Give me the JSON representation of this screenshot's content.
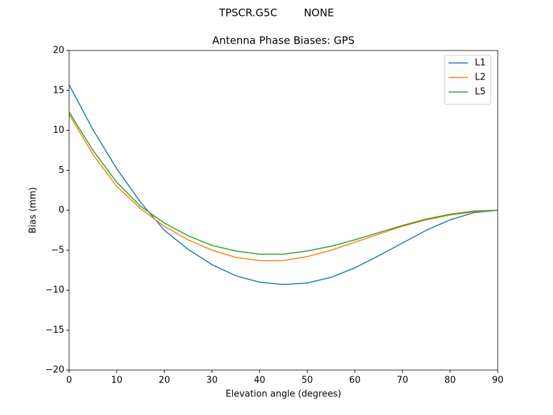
{
  "chart_data": {
    "type": "line",
    "suptitle": "TPSCR.G5C        NONE",
    "title": "Antenna Phase Biases: GPS",
    "xlabel": "Elevation angle (degrees)",
    "ylabel": "Bias (mm)",
    "x": [
      0,
      5,
      10,
      15,
      20,
      25,
      30,
      35,
      40,
      45,
      50,
      55,
      60,
      65,
      70,
      75,
      80,
      85,
      90
    ],
    "series": [
      {
        "name": "L1",
        "color": "#1f77b4",
        "values": [
          15.7,
          10.1,
          5.2,
          1.0,
          -2.5,
          -4.9,
          -6.8,
          -8.2,
          -9.0,
          -9.3,
          -9.1,
          -8.4,
          -7.2,
          -5.7,
          -4.1,
          -2.5,
          -1.2,
          -0.3,
          0
        ]
      },
      {
        "name": "L2",
        "color": "#ff7f0e",
        "values": [
          12.0,
          7.0,
          3.0,
          0.2,
          -2.0,
          -3.7,
          -5.0,
          -5.9,
          -6.3,
          -6.3,
          -5.8,
          -5.0,
          -4.0,
          -3.0,
          -2.0,
          -1.2,
          -0.6,
          -0.2,
          0
        ]
      },
      {
        "name": "L5",
        "color": "#2ca02c",
        "values": [
          12.3,
          7.5,
          3.5,
          0.5,
          -1.6,
          -3.2,
          -4.4,
          -5.1,
          -5.5,
          -5.5,
          -5.1,
          -4.5,
          -3.7,
          -2.8,
          -1.9,
          -1.1,
          -0.5,
          -0.1,
          0
        ]
      }
    ],
    "xlim": [
      0,
      90
    ],
    "xticks": [
      0,
      10,
      20,
      30,
      40,
      50,
      60,
      70,
      80,
      90
    ],
    "ylim": [
      -20,
      20
    ],
    "yticks": [
      {
        "value": -20,
        "label": "−20"
      },
      {
        "value": -15,
        "label": "−15"
      },
      {
        "value": -10,
        "label": "−10"
      },
      {
        "value": -5,
        "label": "−5"
      },
      0,
      5,
      10,
      15,
      20
    ],
    "legend": "upper right",
    "grid": false
  }
}
